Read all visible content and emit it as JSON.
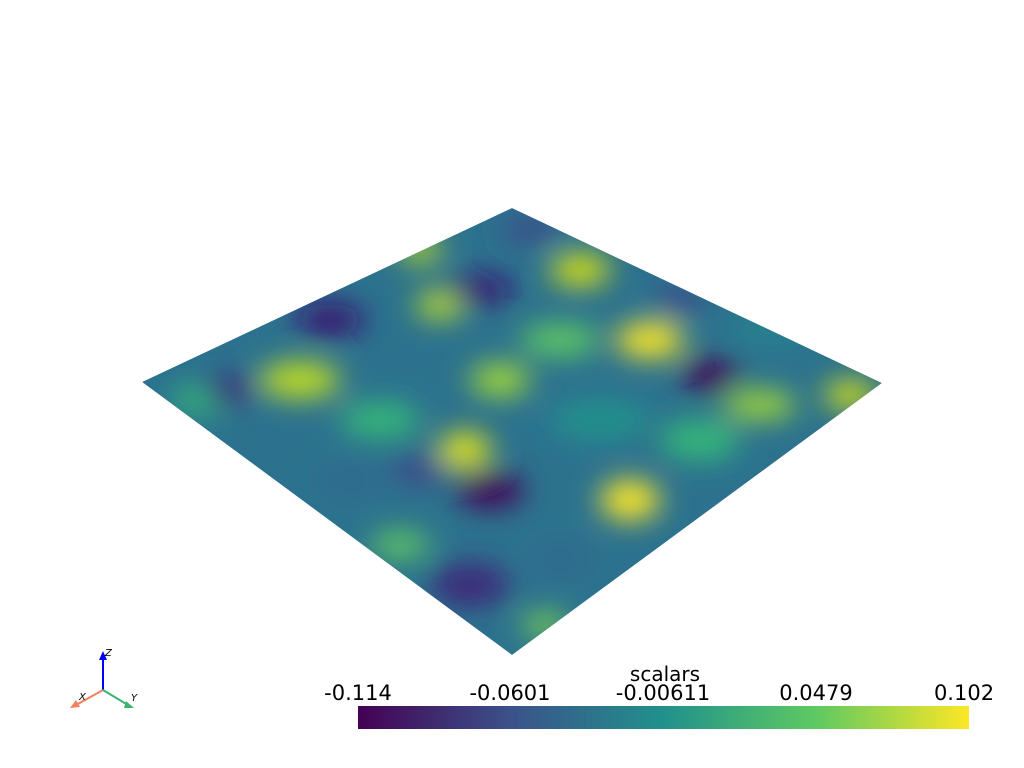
{
  "scalar_bar": {
    "title": "scalars",
    "colormap": "viridis",
    "range": [
      -0.114,
      0.102
    ],
    "tick_labels": [
      "-0.114",
      "-0.0601",
      "-0.00611",
      "0.0479",
      "0.102"
    ],
    "colors": [
      "#440154",
      "#3b528b",
      "#21918c",
      "#5ec962",
      "#fde725"
    ]
  },
  "axes_widget": {
    "x_label": "X",
    "y_label": "Y",
    "z_label": "Z",
    "x_color": "#f08060",
    "y_color": "#3cb371",
    "z_color": "#0000ff"
  },
  "background": "#ffffff"
}
